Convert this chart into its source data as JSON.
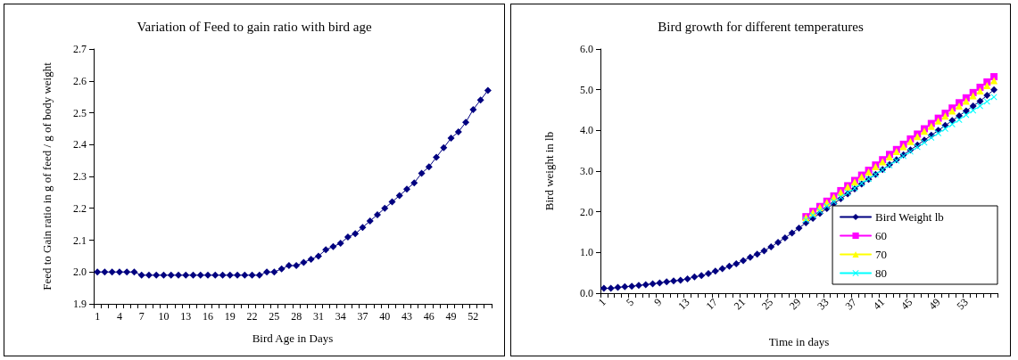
{
  "chart_data": [
    {
      "type": "line",
      "title": "Variation of Feed to gain ratio with bird age",
      "xlabel": "Bird Age in Days",
      "ylabel": "Feed to Gain ratio in g of feed / g of body weight",
      "categories": [
        "1",
        null,
        null,
        "4",
        null,
        null,
        "7",
        null,
        null,
        "10",
        null,
        null,
        "13",
        null,
        null,
        "16",
        null,
        null,
        "19",
        null,
        null,
        "22",
        null,
        null,
        "25",
        null,
        null,
        "28",
        null,
        null,
        "31",
        null,
        null,
        "34",
        null,
        null,
        "37",
        null,
        null,
        "40",
        null,
        null,
        "43",
        null,
        null,
        "46",
        null,
        null,
        "49",
        null,
        null,
        "52",
        null,
        null
      ],
      "series": [
        {
          "color": "#000080",
          "marker": "diamond",
          "values": [
            2.0,
            2.0,
            2.0,
            2.0,
            2.0,
            2.0,
            1.99,
            1.99,
            1.99,
            1.99,
            1.99,
            1.99,
            1.99,
            1.99,
            1.99,
            1.99,
            1.99,
            1.99,
            1.99,
            1.99,
            1.99,
            1.99,
            1.99,
            2.0,
            2.0,
            2.01,
            2.02,
            2.02,
            2.03,
            2.04,
            2.05,
            2.07,
            2.08,
            2.09,
            2.11,
            2.12,
            2.14,
            2.16,
            2.18,
            2.2,
            2.22,
            2.24,
            2.26,
            2.28,
            2.31,
            2.33,
            2.36,
            2.39,
            2.42,
            2.44,
            2.47,
            2.51,
            2.54,
            2.57
          ]
        }
      ],
      "ylim": [
        1.9,
        2.7
      ],
      "yticks": [
        1.9,
        {
          "value": 2,
          "label": "2.0"
        },
        2.1,
        2.2,
        2.3,
        2.4,
        2.5,
        2.6,
        2.7
      ],
      "grid": false,
      "legend": false,
      "line_style": "solid"
    },
    {
      "type": "line",
      "title": "Bird growth for different temperatures",
      "xlabel": "Time in days",
      "ylabel": "Bird weight in lb",
      "categories": [
        "1",
        null,
        null,
        null,
        "5",
        null,
        null,
        null,
        "9",
        null,
        null,
        null,
        "13",
        null,
        null,
        null,
        "17",
        null,
        null,
        null,
        "21",
        null,
        null,
        null,
        "25",
        null,
        null,
        null,
        "29",
        null,
        null,
        null,
        "33",
        null,
        null,
        null,
        "37",
        null,
        null,
        null,
        "41",
        null,
        null,
        null,
        "45",
        null,
        null,
        null,
        "49",
        null,
        null,
        null,
        "53",
        null,
        null,
        null,
        null
      ],
      "series": [
        {
          "name": "Bird Weight lb",
          "color": "#000080",
          "marker": "diamond",
          "values": [
            0.12,
            0.12,
            0.14,
            0.16,
            0.17,
            0.19,
            0.21,
            0.23,
            0.25,
            0.28,
            0.3,
            0.32,
            0.35,
            0.4,
            0.43,
            0.48,
            0.54,
            0.6,
            0.66,
            0.72,
            0.8,
            0.88,
            0.96,
            1.04,
            1.14,
            1.25,
            1.36,
            1.48,
            1.6,
            1.73,
            1.84,
            1.96,
            2.08,
            2.2,
            2.32,
            2.44,
            2.56,
            2.68,
            2.8,
            2.92,
            3.04,
            3.16,
            3.28,
            3.4,
            3.52,
            3.64,
            3.76,
            3.88,
            4.0,
            4.12,
            4.24,
            4.36,
            4.48,
            4.6,
            4.72,
            4.86,
            5.0
          ]
        },
        {
          "name": "60",
          "color": "#ff00ff",
          "marker": "square",
          "values": [
            null,
            null,
            null,
            null,
            null,
            null,
            null,
            null,
            null,
            null,
            null,
            null,
            null,
            null,
            null,
            null,
            null,
            null,
            null,
            null,
            null,
            null,
            null,
            null,
            null,
            null,
            null,
            null,
            null,
            1.88,
            2.01,
            2.13,
            2.26,
            2.39,
            2.52,
            2.64,
            2.77,
            2.9,
            3.02,
            3.15,
            3.28,
            3.41,
            3.53,
            3.66,
            3.79,
            3.91,
            4.04,
            4.17,
            4.3,
            4.42,
            4.55,
            4.68,
            4.8,
            4.93,
            5.06,
            5.19,
            5.32
          ]
        },
        {
          "name": "70",
          "color": "#ffff00",
          "marker": "triangle",
          "values": [
            null,
            null,
            null,
            null,
            null,
            null,
            null,
            null,
            null,
            null,
            null,
            null,
            null,
            null,
            null,
            null,
            null,
            null,
            null,
            null,
            null,
            null,
            null,
            null,
            null,
            null,
            null,
            null,
            null,
            1.86,
            1.98,
            2.11,
            2.23,
            2.36,
            2.48,
            2.61,
            2.73,
            2.86,
            2.98,
            3.11,
            3.23,
            3.35,
            3.48,
            3.6,
            3.73,
            3.85,
            3.98,
            4.1,
            4.23,
            4.35,
            4.48,
            4.6,
            4.72,
            4.85,
            4.97,
            5.1,
            5.22
          ]
        },
        {
          "name": "80",
          "color": "#00ffff",
          "marker": "cross",
          "values": [
            null,
            null,
            null,
            null,
            null,
            null,
            null,
            null,
            null,
            null,
            null,
            null,
            null,
            null,
            null,
            null,
            null,
            null,
            null,
            null,
            null,
            null,
            null,
            null,
            null,
            null,
            null,
            null,
            null,
            1.8,
            1.91,
            2.02,
            2.14,
            2.25,
            2.36,
            2.47,
            2.58,
            2.7,
            2.81,
            2.92,
            3.03,
            3.14,
            3.26,
            3.37,
            3.48,
            3.59,
            3.7,
            3.82,
            3.93,
            4.04,
            4.15,
            4.26,
            4.38,
            4.49,
            4.6,
            4.71,
            4.82
          ]
        }
      ],
      "ylim": [
        0,
        6
      ],
      "yticks": [
        {
          "value": 0,
          "label": "0.0"
        },
        {
          "value": 1,
          "label": "1.0"
        },
        {
          "value": 2,
          "label": "2.0"
        },
        {
          "value": 3,
          "label": "3.0"
        },
        {
          "value": 4,
          "label": "4.0"
        },
        {
          "value": 5,
          "label": "5.0"
        },
        {
          "value": 6,
          "label": "6.0"
        }
      ],
      "grid": false,
      "legend": "bottom right",
      "line_style": "solid"
    }
  ]
}
